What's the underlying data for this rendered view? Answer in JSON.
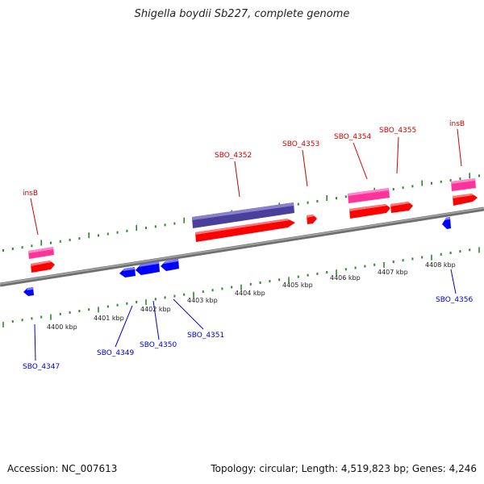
{
  "title": "Shigella boydii Sb227, complete genome",
  "footer": {
    "accession": "Accession: NC_007613",
    "info": "Topology: circular; Length: 4,519,823 bp; Genes: 4,246"
  },
  "colors": {
    "forward_gene": "#ff0000",
    "reverse_gene": "#0000ff",
    "pink_feature": "#ff3399",
    "purple_feature": "#4a3f9a",
    "backbone": "#7a7a7a",
    "tick": "#2a8a2a",
    "forward_label": "#cc0000",
    "reverse_label": "#0000cc"
  },
  "scale": {
    "labels": [
      "4400 kbp",
      "4401 kbp",
      "4402 kbp",
      "4403 kbp",
      "4404 kbp",
      "4405 kbp",
      "4406 kbp",
      "4407 kbp",
      "4408 kbp"
    ]
  },
  "genes": {
    "forward_labels": [
      "insB",
      "SBO_4352",
      "SBO_4353",
      "SBO_4354",
      "SBO_4355",
      "insB"
    ],
    "reverse_labels": [
      "SBO_4347",
      "SBO_4349",
      "SBO_4350",
      "SBO_4351",
      "SBO_4356"
    ]
  }
}
